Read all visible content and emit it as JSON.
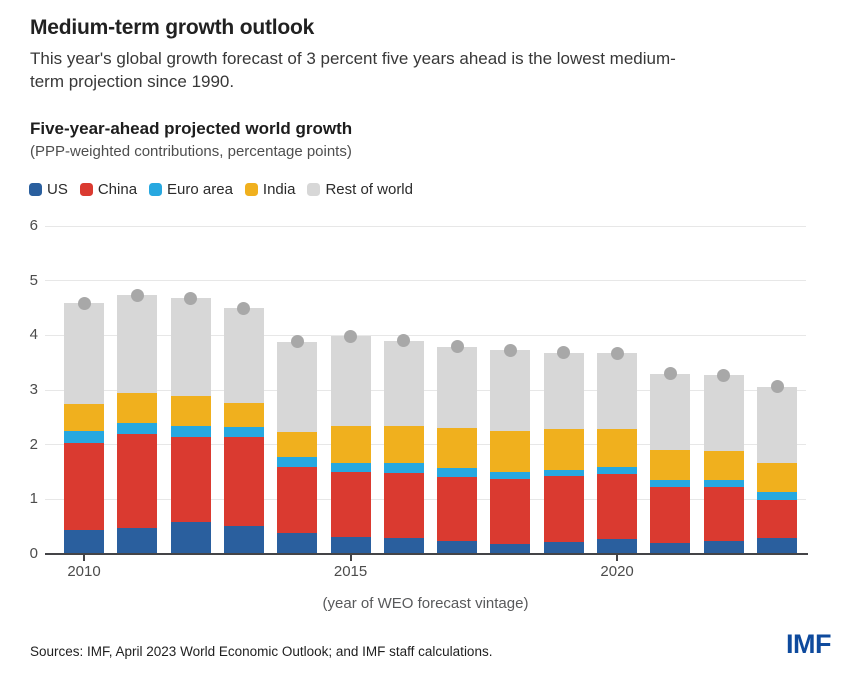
{
  "page": {
    "title": "Medium-term growth outlook",
    "subtitle_lines": [
      "This year's global growth forecast of 3 percent five years ahead is the lowest medium-",
      "term projection since 1990."
    ],
    "sources": "Sources: IMF, April 2023 World Economic Outlook; and IMF staff calculations.",
    "logo_text": "IMF"
  },
  "chart": {
    "heading": "Five-year-ahead projected world growth",
    "heading_sub": "(PPP-weighted contributions, percentage points)",
    "xlabel": "(year of WEO forecast vintage)"
  },
  "colors": {
    "us": "#2a5f9e",
    "china": "#da3a30",
    "euro_area": "#27a8e0",
    "india": "#f0b01e",
    "rest_of_world": "#d7d7d7",
    "total_dot": "#a8a8a8",
    "gridline": "#e7e7e7",
    "axis": "#444447",
    "imf_blue": "#0e4a9d"
  },
  "chart_data": {
    "type": "bar",
    "stacked": true,
    "title": "Five-year-ahead projected world growth",
    "subtitle": "(PPP-weighted contributions, percentage points)",
    "xlabel": "(year of WEO forecast vintage)",
    "ylabel": "",
    "ylim": [
      0,
      6
    ],
    "y_ticks": [
      0,
      1,
      2,
      3,
      4,
      5,
      6
    ],
    "grid": true,
    "legend_position": "top",
    "categories": [
      2010,
      2011,
      2012,
      2013,
      2014,
      2015,
      2016,
      2017,
      2018,
      2019,
      2020,
      2021,
      2022,
      2023
    ],
    "x_tick_labels": [
      "2010",
      "2015",
      "2020"
    ],
    "x_tick_indices": [
      0,
      5,
      10
    ],
    "series": [
      {
        "name": "US",
        "color": "#2a5f9e",
        "values": [
          0.43,
          0.48,
          0.59,
          0.52,
          0.39,
          0.31,
          0.29,
          0.24,
          0.18,
          0.22,
          0.28,
          0.21,
          0.23,
          0.3
        ]
      },
      {
        "name": "China",
        "color": "#da3a30",
        "values": [
          1.6,
          1.72,
          1.55,
          1.62,
          1.21,
          1.19,
          1.19,
          1.17,
          1.19,
          1.21,
          1.19,
          1.02,
          1.0,
          0.68
        ]
      },
      {
        "name": "Euro area",
        "color": "#27a8e0",
        "values": [
          0.22,
          0.2,
          0.21,
          0.19,
          0.17,
          0.17,
          0.18,
          0.16,
          0.13,
          0.11,
          0.13,
          0.13,
          0.13,
          0.16
        ]
      },
      {
        "name": "India",
        "color": "#f0b01e",
        "values": [
          0.49,
          0.55,
          0.54,
          0.43,
          0.47,
          0.67,
          0.68,
          0.73,
          0.75,
          0.75,
          0.69,
          0.55,
          0.53,
          0.53
        ]
      },
      {
        "name": "Rest of world",
        "color": "#d7d7d7",
        "values": [
          1.85,
          1.78,
          1.79,
          1.74,
          1.64,
          1.64,
          1.56,
          1.49,
          1.48,
          1.39,
          1.38,
          1.39,
          1.38,
          1.39
        ]
      }
    ],
    "totals_dots": {
      "marker": "circle",
      "color": "#a8a8a8",
      "values": [
        4.59,
        4.73,
        4.68,
        4.5,
        3.88,
        3.98,
        3.9,
        3.79,
        3.73,
        3.68,
        3.67,
        3.3,
        3.27,
        3.06
      ]
    }
  }
}
